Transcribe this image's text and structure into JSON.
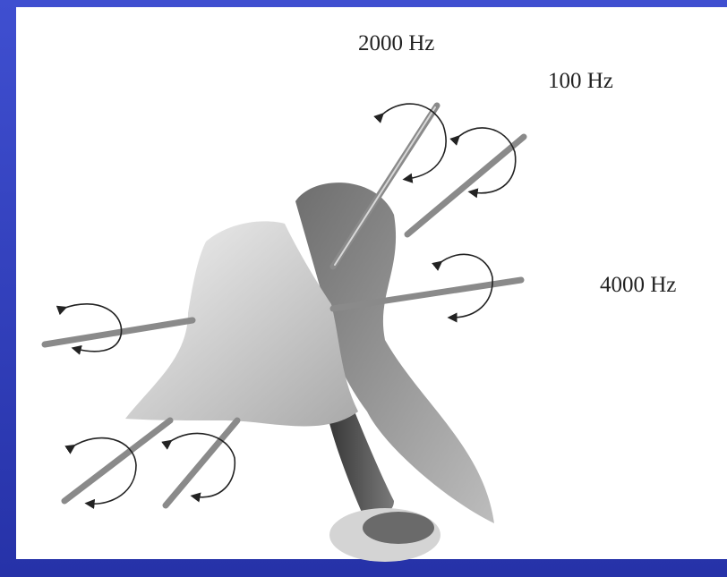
{
  "labels": [
    "2000 Hz",
    "100 Hz",
    "4000 Hz"
  ]
}
